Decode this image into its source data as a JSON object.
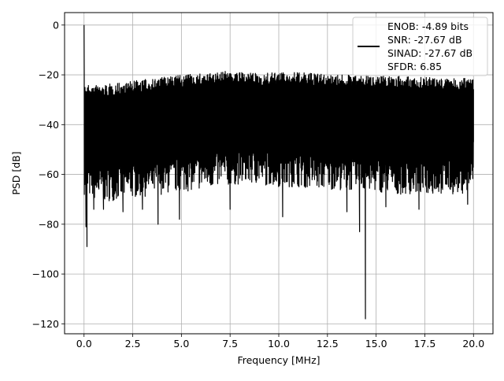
{
  "chart_data": {
    "type": "line",
    "title": "",
    "xlabel": "Frequency [MHz]",
    "ylabel": "PSD [dB]",
    "xlim": [
      -1.0,
      21.0
    ],
    "ylim": [
      -124.0,
      5.0
    ],
    "grid": true,
    "legend_position": "top-right",
    "xticks": [
      0.0,
      2.5,
      5.0,
      7.5,
      10.0,
      12.5,
      15.0,
      17.5,
      20.0
    ],
    "xtick_labels": [
      "0.0",
      "2.5",
      "5.0",
      "7.5",
      "10.0",
      "12.5",
      "15.0",
      "17.5",
      "20.0"
    ],
    "yticks": [
      0,
      -20,
      -40,
      -60,
      -80,
      -100,
      -120
    ],
    "ytick_labels": [
      "0",
      "−20",
      "−40",
      "−60",
      "−80",
      "−100",
      "−120"
    ],
    "legend_lines": [
      "ENOB: -4.89 bits",
      "SNR: -27.67 dB",
      "SINAD: -27.67 dB",
      "SFDR: 6.85"
    ],
    "series": [
      {
        "color": "#000000",
        "x_range": [
          0.0,
          20.0
        ],
        "dc_peak": {
          "x": 0.0,
          "y": 0.0
        },
        "upper_envelope": {
          "x": [
            0.0,
            0.5,
            1.0,
            2.0,
            3.0,
            4.0,
            5.0,
            6.0,
            7.0,
            7.5,
            8.0,
            9.0,
            10.0,
            11.0,
            12.0,
            13.0,
            14.0,
            15.0,
            16.0,
            17.0,
            18.0,
            19.0,
            20.0
          ],
          "y": [
            -24,
            -24,
            -24,
            -23,
            -22,
            -21,
            -20,
            -19.5,
            -19,
            -18,
            -19,
            -19.5,
            -19,
            -19,
            -19.5,
            -20,
            -20,
            -20,
            -20.5,
            -21,
            -21,
            -21.5,
            -21
          ]
        },
        "lower_envelope": {
          "x": [
            0.0,
            0.5,
            1.0,
            2.0,
            3.0,
            4.0,
            5.0,
            6.0,
            7.0,
            8.0,
            9.0,
            10.0,
            11.0,
            12.0,
            13.0,
            14.0,
            15.0,
            16.0,
            17.0,
            18.0,
            19.0,
            20.0
          ],
          "y": [
            -64,
            -66,
            -67,
            -66,
            -65,
            -64,
            -63,
            -62,
            -61,
            -60,
            -60,
            -61,
            -61,
            -62,
            -62,
            -63,
            -63,
            -64,
            -64,
            -64,
            -64,
            -63
          ]
        },
        "dips": [
          {
            "x": 0.15,
            "y": -89
          },
          {
            "x": 0.1,
            "y": -81
          },
          {
            "x": 0.5,
            "y": -74
          },
          {
            "x": 1.0,
            "y": -74
          },
          {
            "x": 2.0,
            "y": -75
          },
          {
            "x": 3.0,
            "y": -74
          },
          {
            "x": 3.8,
            "y": -80
          },
          {
            "x": 4.9,
            "y": -78
          },
          {
            "x": 7.5,
            "y": -74
          },
          {
            "x": 10.2,
            "y": -77
          },
          {
            "x": 13.5,
            "y": -75
          },
          {
            "x": 14.15,
            "y": -83
          },
          {
            "x": 14.45,
            "y": -118
          },
          {
            "x": 15.5,
            "y": -73
          },
          {
            "x": 17.2,
            "y": -74
          },
          {
            "x": 19.7,
            "y": -72
          }
        ]
      }
    ]
  }
}
